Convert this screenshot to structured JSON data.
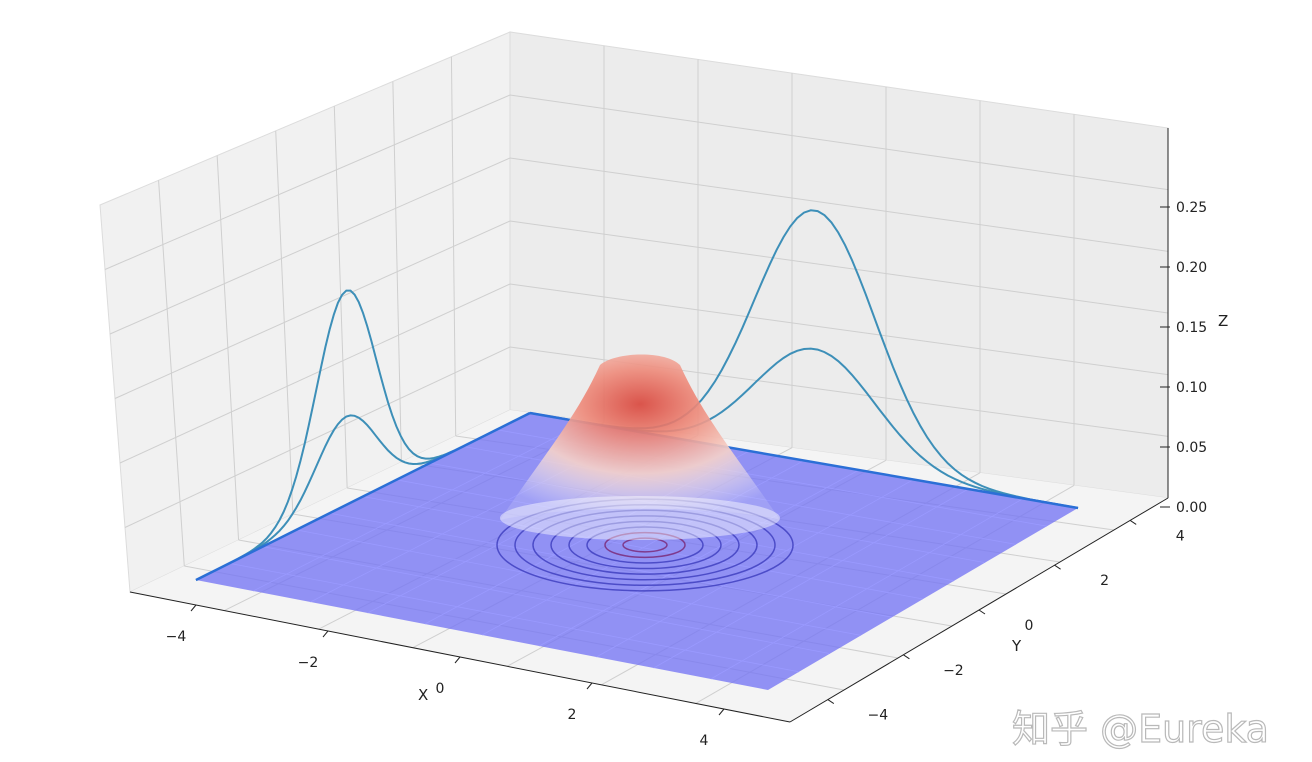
{
  "chart_data": {
    "type": "surface",
    "function": "bivariate gaussian density, peak ~0.14 at (0,0)",
    "xlabel": "X",
    "ylabel": "Y",
    "zlabel": "Z",
    "xlim": [
      -5,
      5
    ],
    "ylim": [
      -5,
      5
    ],
    "zlim": [
      0,
      0.3
    ],
    "x_ticks": [
      "−4",
      "−2",
      "0",
      "2",
      "4"
    ],
    "y_ticks": [
      "−4",
      "−2",
      "0",
      "2",
      "4"
    ],
    "z_ticks": [
      "0.00",
      "0.05",
      "0.10",
      "0.15",
      "0.20",
      "0.25"
    ],
    "surface_peak_z": 0.14,
    "surface_colormap": "coolwarm",
    "floor_plane": {
      "z": 0,
      "color": "#7a7af5"
    },
    "projection_on_left_wall": {
      "peak_z": 0.17,
      "secondary_peak_z": 0.07
    },
    "projection_on_back_wall": {
      "peak_z": 0.2,
      "secondary_peak_z": 0.09
    },
    "contour_levels": 8,
    "grid": true,
    "colors": {
      "projection_line": "#3d8fb8",
      "floor": "#6f6ff2",
      "peak": "#e2554b",
      "contour": "#4040c0"
    }
  },
  "watermark": "知乎 @Eureka"
}
